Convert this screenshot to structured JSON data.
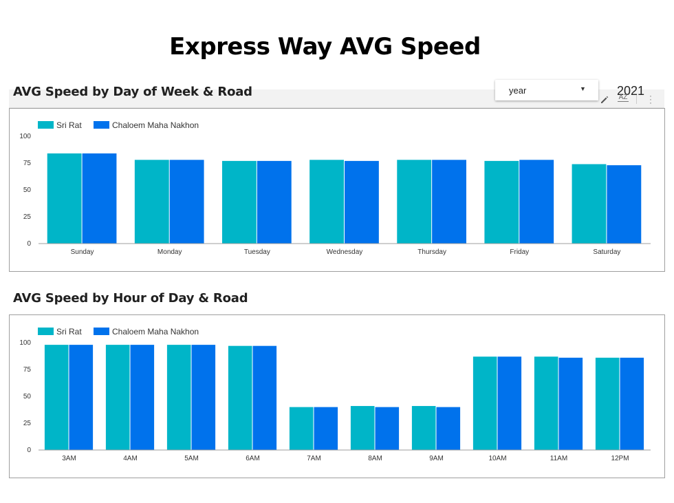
{
  "page": {
    "title": "Express Way AVG Speed"
  },
  "controls": {
    "year_label": "year",
    "year_value": "2021",
    "sort_icon_text": "AZ",
    "icons": {
      "edit": "pencil-icon",
      "sort": "sort-az-icon",
      "more": "more-vert-icon",
      "dropdown": "caret-down-icon"
    }
  },
  "colors": {
    "sri_rat": "#00b5c8",
    "chaloem": "#0072ec",
    "axis": "#9e9e9e",
    "header_bg": "#f2f2f2"
  },
  "chart1": {
    "title": "AVG Speed by Day of Week & Road"
  },
  "chart2": {
    "title": "AVG Speed by Hour of Day & Road"
  },
  "chart_data": [
    {
      "type": "bar",
      "title": "AVG Speed by Day of Week & Road",
      "categories": [
        "Sunday",
        "Monday",
        "Tuesday",
        "Wednesday",
        "Thursday",
        "Friday",
        "Saturday"
      ],
      "series": [
        {
          "name": "Sri Rat",
          "color": "#00b5c8",
          "values": [
            84,
            78,
            77,
            78,
            78,
            77,
            74
          ]
        },
        {
          "name": "Chaloem Maha Nakhon",
          "color": "#0072ec",
          "values": [
            84,
            78,
            77,
            77,
            78,
            78,
            73
          ]
        }
      ],
      "yticks": [
        "0",
        "25",
        "50",
        "75",
        "100"
      ],
      "ylim": [
        0,
        100
      ],
      "legend": "top-left",
      "grid": false
    },
    {
      "type": "bar",
      "title": "AVG Speed by Hour of Day & Road",
      "categories": [
        "3AM",
        "4AM",
        "5AM",
        "6AM",
        "7AM",
        "8AM",
        "9AM",
        "10AM",
        "11AM",
        "12PM"
      ],
      "series": [
        {
          "name": "Sri Rat",
          "color": "#00b5c8",
          "values": [
            98,
            98,
            98,
            97,
            40,
            41,
            41,
            87,
            87,
            86
          ]
        },
        {
          "name": "Chaloem Maha Nakhon",
          "color": "#0072ec",
          "values": [
            98,
            98,
            98,
            97,
            40,
            40,
            40,
            87,
            86,
            86
          ]
        }
      ],
      "yticks": [
        "0",
        "25",
        "50",
        "75",
        "100"
      ],
      "ylim": [
        0,
        100
      ],
      "legend": "top-left",
      "grid": false
    }
  ]
}
